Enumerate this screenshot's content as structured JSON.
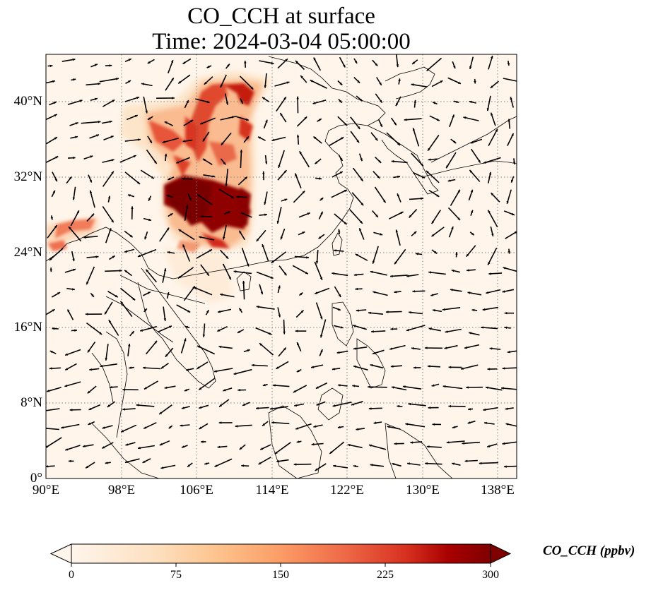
{
  "title": {
    "line1": "CO_CCH at surface",
    "line2": "Time: 2024-03-04 05:00:00"
  },
  "map": {
    "extent": {
      "lon": [
        90,
        140
      ],
      "lat": [
        0,
        45
      ]
    },
    "lon_ticks": [
      "90°E",
      "98°E",
      "106°E",
      "114°E",
      "122°E",
      "130°E",
      "138°E"
    ],
    "lon_tick_values": [
      90,
      98,
      106,
      114,
      122,
      130,
      138
    ],
    "lat_ticks": [
      "0°",
      "8°N",
      "16°N",
      "24°N",
      "32°N",
      "40°N"
    ],
    "lat_tick_values": [
      0,
      8,
      16,
      24,
      32,
      40
    ],
    "gridlines": "dotted",
    "plume_color_max": "#7f0000",
    "field_background": "#fff5eb"
  },
  "colorbar": {
    "label": "CO_CCH (ppbv)",
    "ticks": [
      "0",
      "75",
      "150",
      "225",
      "300"
    ],
    "tick_values": [
      0,
      75,
      150,
      225,
      300
    ],
    "range": [
      0,
      300
    ],
    "extend": "both",
    "colormap": [
      "#fff5eb",
      "#fdd49e",
      "#fdbb84",
      "#fc8d59",
      "#e34a33",
      "#b30000",
      "#7f0000"
    ]
  }
}
